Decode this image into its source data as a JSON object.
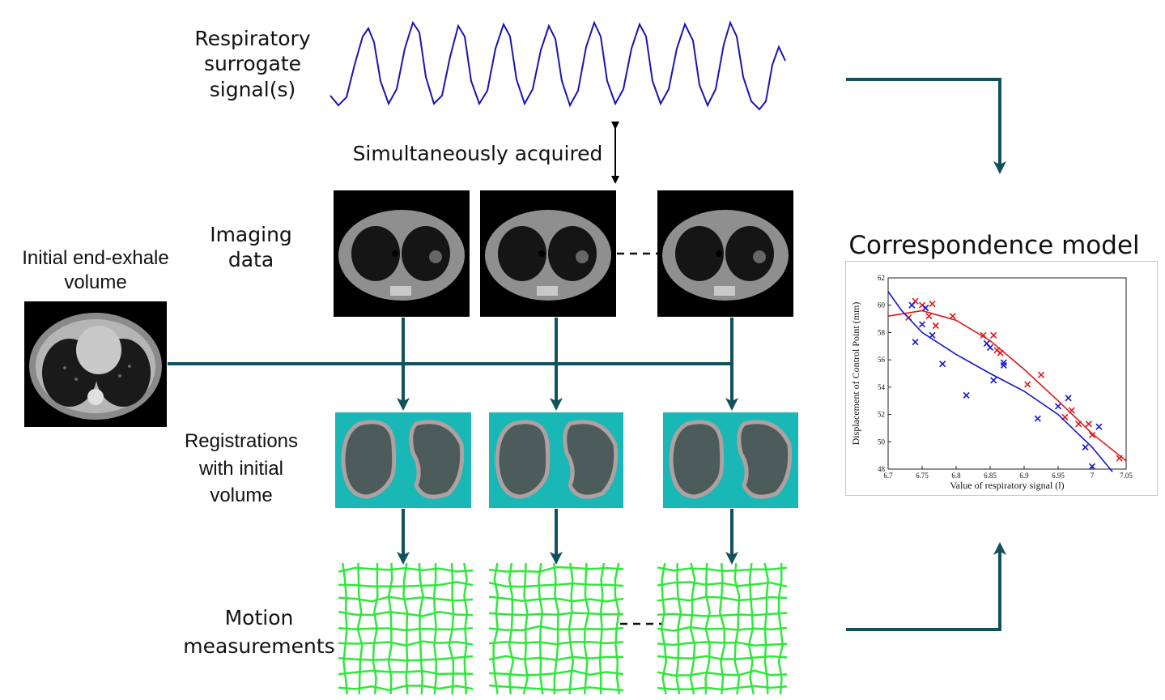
{
  "labels": {
    "surrogate": [
      "Respiratory",
      "surrogate",
      "signal(s)"
    ],
    "simultaneous": "Simultaneously acquired",
    "imaging": [
      "Imaging",
      "data"
    ],
    "initial": [
      "Initial end-exhale",
      "volume"
    ],
    "registrations": [
      "Registrations",
      "with initial",
      "volume"
    ],
    "motion": [
      "Motion",
      "measurements"
    ],
    "model_title": "Correspondence model"
  },
  "colors": {
    "arrow": "#12505e",
    "signal": "#1a14b4",
    "registration_bg": "#1ab7b7",
    "grid": "#2ee83a",
    "series_red": "#e01818",
    "series_blue": "#1414d0"
  },
  "chart_data": {
    "type": "scatter",
    "xlabel": "Value of respiratory signal (l)",
    "ylabel": "Displacement of Control Point (mm)",
    "xlim": [
      6.7,
      7.05
    ],
    "ylim": [
      48,
      62
    ],
    "xticks": [
      "6.7",
      "6.75",
      "6.8",
      "6.85",
      "6.9",
      "6.95",
      "7",
      "7.05"
    ],
    "yticks": [
      "48",
      "50",
      "52",
      "54",
      "56",
      "58",
      "60",
      "62"
    ],
    "series": [
      {
        "color": "red",
        "marker": "x",
        "points": [
          [
            6.73,
            59.1
          ],
          [
            6.74,
            60.3
          ],
          [
            6.75,
            60.0
          ],
          [
            6.755,
            59.8
          ],
          [
            6.76,
            59.2
          ],
          [
            6.765,
            60.1
          ],
          [
            6.77,
            58.5
          ],
          [
            6.795,
            59.2
          ],
          [
            6.84,
            57.8
          ],
          [
            6.855,
            57.8
          ],
          [
            6.86,
            56.7
          ],
          [
            6.865,
            56.5
          ],
          [
            6.905,
            54.2
          ],
          [
            6.925,
            54.9
          ],
          [
            6.96,
            51.8
          ],
          [
            6.97,
            52.3
          ],
          [
            6.98,
            51.3
          ],
          [
            6.995,
            51.3
          ],
          [
            7.0,
            50.5
          ],
          [
            7.04,
            48.8
          ]
        ],
        "fit": [
          [
            6.7,
            59.2
          ],
          [
            6.75,
            59.6
          ],
          [
            6.8,
            58.9
          ],
          [
            6.85,
            57.4
          ],
          [
            6.9,
            55.3
          ],
          [
            6.95,
            53.0
          ],
          [
            7.0,
            50.6
          ],
          [
            7.05,
            48.6
          ]
        ]
      },
      {
        "color": "blue",
        "marker": "x",
        "points": [
          [
            6.735,
            60.0
          ],
          [
            6.74,
            57.3
          ],
          [
            6.75,
            58.6
          ],
          [
            6.755,
            59.8
          ],
          [
            6.765,
            57.8
          ],
          [
            6.78,
            55.7
          ],
          [
            6.815,
            53.4
          ],
          [
            6.845,
            57.2
          ],
          [
            6.85,
            56.9
          ],
          [
            6.855,
            54.5
          ],
          [
            6.87,
            55.8
          ],
          [
            6.87,
            55.6
          ],
          [
            6.92,
            51.7
          ],
          [
            6.95,
            52.6
          ],
          [
            6.965,
            53.2
          ],
          [
            6.99,
            49.6
          ],
          [
            7.0,
            48.2
          ],
          [
            7.01,
            51.1
          ]
        ],
        "fit": [
          [
            6.7,
            61.0
          ],
          [
            6.72,
            59.6
          ],
          [
            6.75,
            58.0
          ],
          [
            6.8,
            56.4
          ],
          [
            6.85,
            55.0
          ],
          [
            6.9,
            53.7
          ],
          [
            6.95,
            52.0
          ],
          [
            7.0,
            49.6
          ],
          [
            7.03,
            47.8
          ]
        ]
      }
    ]
  }
}
